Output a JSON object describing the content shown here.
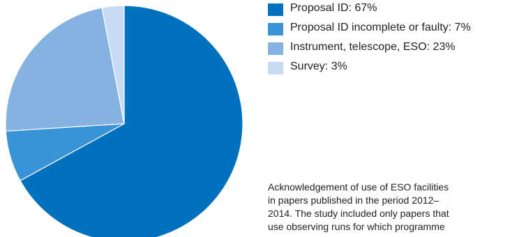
{
  "chart_data": {
    "type": "pie",
    "slices": [
      {
        "label": "Proposal ID: 67%",
        "value": 67,
        "color": "#0071bd"
      },
      {
        "label": "Proposal ID incomplete or faulty: 7%",
        "value": 7,
        "color": "#3a93d6"
      },
      {
        "label": "Instrument, telescope, ESO: 23%",
        "value": 23,
        "color": "#86b2e2"
      },
      {
        "label": "Survey: 3%",
        "value": 3,
        "color": "#c7dcf3"
      }
    ],
    "legend_position": "right",
    "start": "12 o'clock, clockwise"
  },
  "caption": "Acknowledgement of use of ESO facilities\nin papers published in the period 2012–\n2014. The study included only papers that\nuse observing runs for which programme"
}
